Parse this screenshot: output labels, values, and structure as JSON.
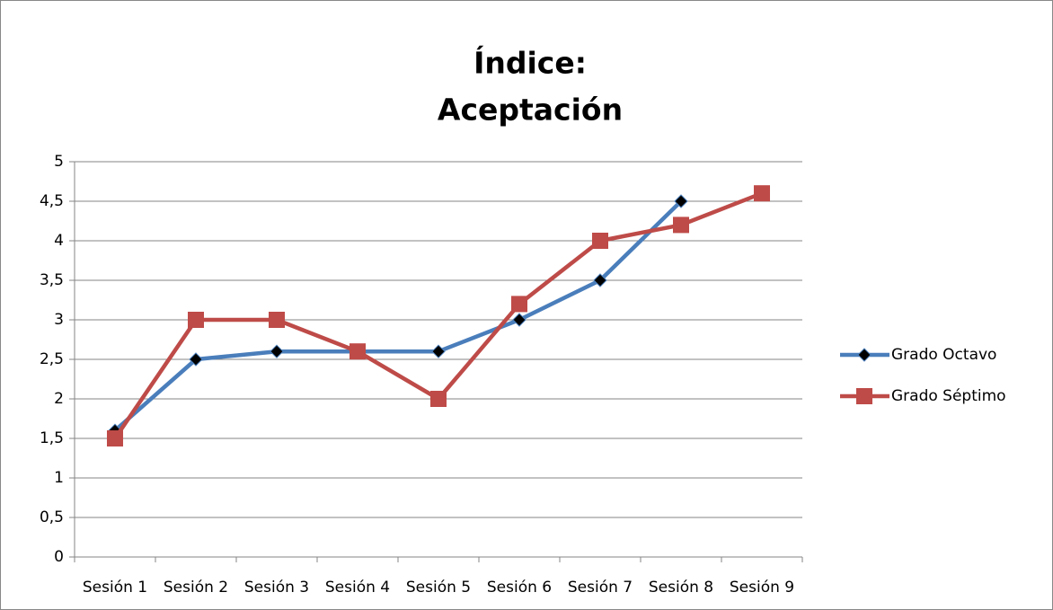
{
  "chart_data": {
    "type": "line",
    "title": [
      "Índice:",
      "Aceptación"
    ],
    "categories": [
      "Sesión 1",
      "Sesión 2",
      "Sesión 3",
      "Sesión 4",
      "Sesión 5",
      "Sesión 6",
      "Sesión 7",
      "Sesión 8",
      "Sesión 9"
    ],
    "series": [
      {
        "name": "Grado Octavo",
        "color": "#4a7ebb",
        "marker": "diamond",
        "marker_color": "#000000",
        "values": [
          1.6,
          2.5,
          2.6,
          2.6,
          2.6,
          3.0,
          3.5,
          4.5,
          null
        ]
      },
      {
        "name": "Grado Séptimo",
        "color": "#be4b48",
        "marker": "square",
        "marker_color": "#be4b48",
        "values": [
          1.5,
          3,
          3,
          2.6,
          2,
          3.2,
          4,
          4.2,
          4.6
        ]
      }
    ],
    "ylim": [
      0,
      5
    ],
    "yticks": [
      0,
      {
        "value": 0.5,
        "label": "0,5"
      },
      1,
      {
        "value": 1.5,
        "label": "1,5"
      },
      2,
      {
        "value": 2.5,
        "label": "2,5"
      },
      3,
      {
        "value": 3.5,
        "label": "3,5"
      },
      4,
      {
        "value": 4.5,
        "label": "4,5"
      },
      5
    ],
    "grid": true,
    "legend": "right"
  }
}
